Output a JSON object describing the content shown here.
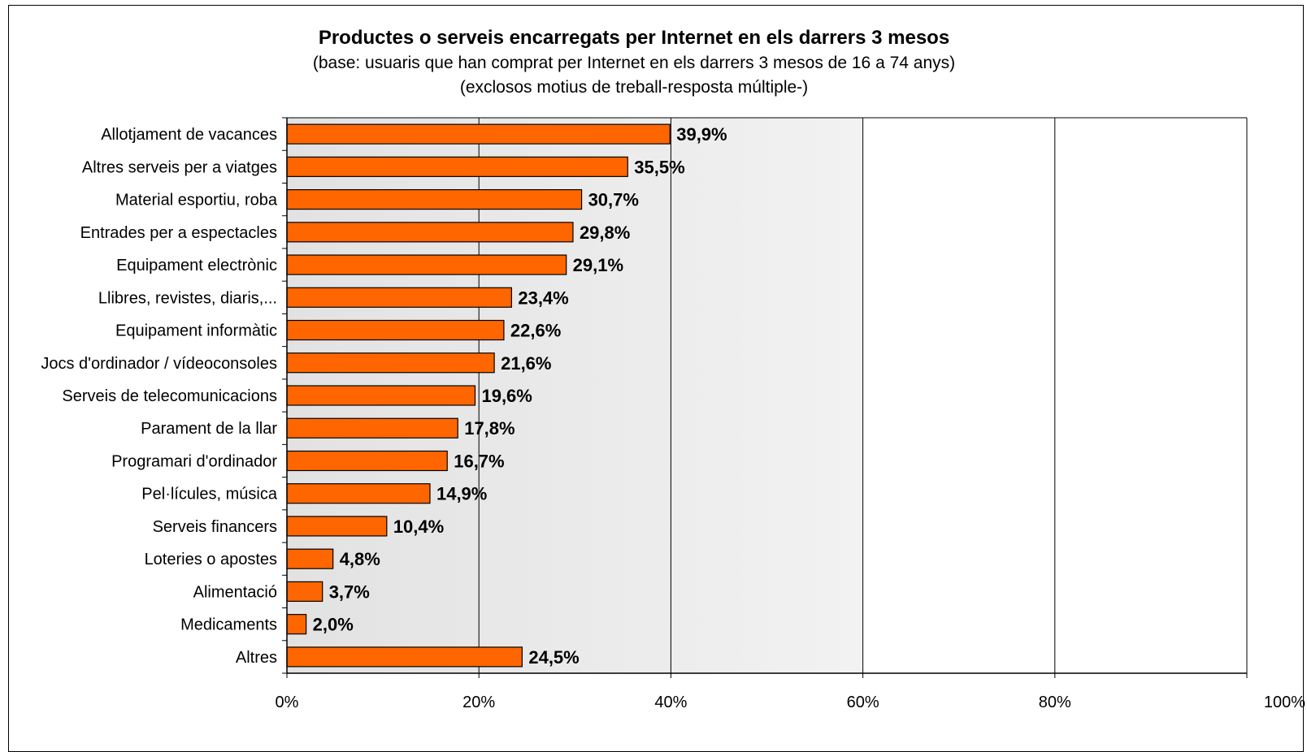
{
  "chart_data": {
    "type": "bar",
    "orientation": "horizontal",
    "title": "Productes o serveis encarregats per Internet en els darrers 3 mesos",
    "subtitle_lines": [
      "(base: usuaris que han comprat per Internet en els darrers 3 mesos de 16 a 74 anys)",
      "(exclosos motius de treball-resposta múltiple-)"
    ],
    "categories": [
      "Allotjament de vacances",
      "Altres serveis per a viatges",
      "Material esportiu, roba",
      "Entrades per a espectacles",
      "Equipament electrònic",
      "Llibres, revistes, diaris,...",
      "Equipament informàtic",
      "Jocs d'ordinador / vídeoconsoles",
      "Serveis de telecomunicacions",
      "Parament de la llar",
      "Programari d'ordinador",
      "Pel·lícules, música",
      "Serveis financers",
      "Loteries o apostes",
      "Alimentació",
      "Medicaments",
      "Altres"
    ],
    "values": [
      39.9,
      35.5,
      30.7,
      29.8,
      29.1,
      23.4,
      22.6,
      21.6,
      19.6,
      17.8,
      16.7,
      14.9,
      10.4,
      4.8,
      3.7,
      2.0,
      24.5
    ],
    "value_labels": [
      "39,9%",
      "35,5%",
      "30,7%",
      "29,8%",
      "29,1%",
      "23,4%",
      "22,6%",
      "21,6%",
      "19,6%",
      "17,8%",
      "16,7%",
      "14,9%",
      "10,4%",
      "4,8%",
      "3,7%",
      "2,0%",
      "24,5%"
    ],
    "xlim": [
      0,
      100
    ],
    "x_ticks": [
      0,
      20,
      40,
      60,
      80,
      100
    ],
    "x_tick_labels": [
      "0%",
      "20%",
      "40%",
      "60%",
      "80%",
      "100%"
    ],
    "grid": true,
    "legend": "none",
    "colors": {
      "bar": "#ff6600",
      "bar_edge": "#000000",
      "plot_bg_band": "#e8e8e8",
      "plot_bg": "#ffffff",
      "grid": "#000000"
    }
  }
}
